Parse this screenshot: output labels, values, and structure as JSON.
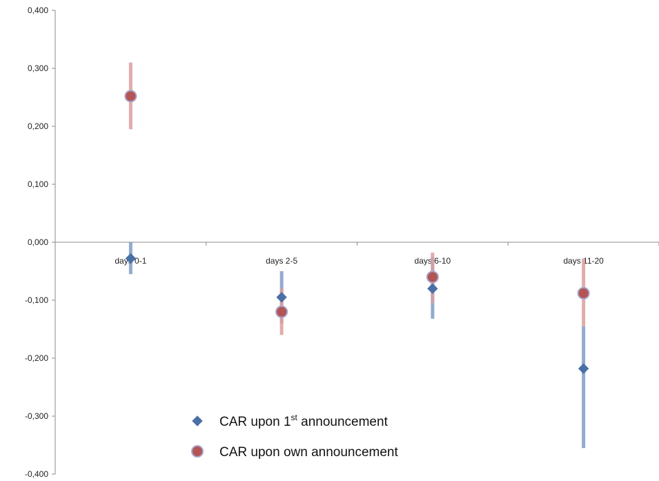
{
  "chart_data": {
    "type": "scatter",
    "title": "",
    "xlabel": "",
    "ylabel": "",
    "categories": [
      "days 0-1",
      "days 2-5",
      "days 6-10",
      "days 11-20"
    ],
    "ylim": [
      -0.4,
      0.4
    ],
    "yticks": [
      0.4,
      0.3,
      0.2,
      0.1,
      0.0,
      -0.1,
      -0.2,
      -0.3,
      -0.4
    ],
    "ytick_labels": [
      "0,400",
      "0,300",
      "0,200",
      "0,100",
      "0,000",
      "-0,100",
      "-0,200",
      "-0,300",
      "-0,400"
    ],
    "grid": false,
    "legend_position": "bottom-center",
    "series": [
      {
        "name": "CAR upon 1st announcement",
        "legend_main": "CAR upon 1",
        "legend_sup": "st",
        "legend_tail": " announcement",
        "marker": "diamond",
        "color": "#4a70a6",
        "bar_color": "#7f9cc4",
        "values": [
          -0.028,
          -0.095,
          -0.08,
          -0.218
        ],
        "error_low": [
          -0.055,
          -0.14,
          -0.132,
          -0.355
        ],
        "error_high": [
          0.0,
          -0.05,
          -0.025,
          -0.145
        ]
      },
      {
        "name": "CAR upon own announcement",
        "legend_main": "CAR upon own announcement",
        "legend_sup": "",
        "legend_tail": "",
        "marker": "circle",
        "color": "#b35555",
        "bar_color": "#dc9e9e",
        "values": [
          0.252,
          -0.12,
          -0.06,
          -0.088
        ],
        "error_low": [
          0.195,
          -0.16,
          -0.105,
          -0.145
        ],
        "error_high": [
          0.31,
          -0.08,
          -0.018,
          -0.028
        ]
      }
    ]
  }
}
